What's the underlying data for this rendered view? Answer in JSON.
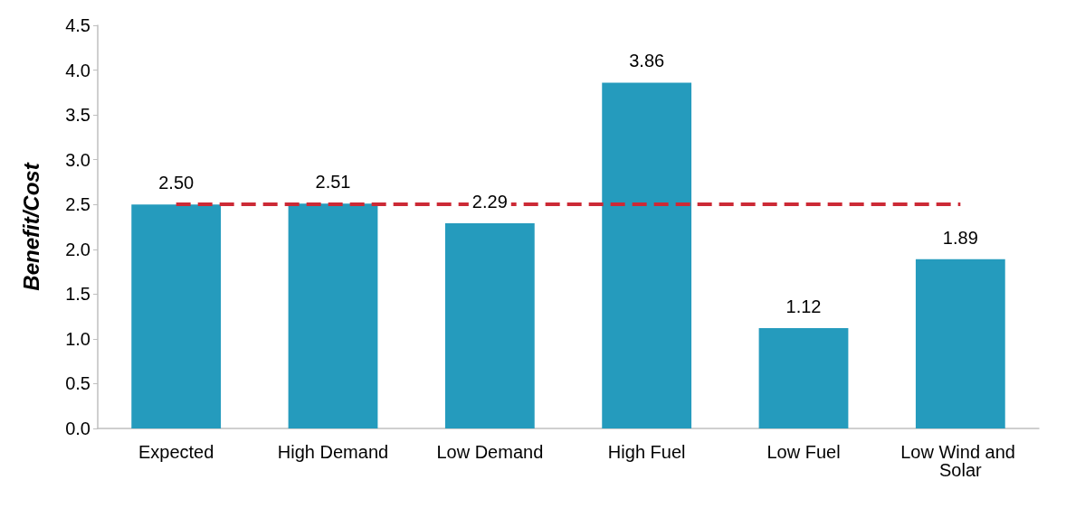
{
  "chart_data": {
    "type": "bar",
    "ylabel": "Benefit/Cost",
    "categories": [
      "Expected",
      "High Demand",
      "Low Demand",
      "High Fuel",
      "Low Fuel",
      "Low Wind and Solar"
    ],
    "values": [
      2.5,
      2.51,
      2.29,
      3.86,
      1.12,
      1.89
    ],
    "value_labels": [
      "2.50",
      "2.51",
      "2.29",
      "3.86",
      "1.12",
      "1.89"
    ],
    "color": "#259bbd",
    "ylim": [
      0,
      4.5
    ],
    "yticks": [
      {
        "value": 0,
        "label": "0.0"
      },
      {
        "value": 0.5,
        "label": "0.5"
      },
      {
        "value": 1,
        "label": "1.0"
      },
      {
        "value": 1.5,
        "label": "1.5"
      },
      {
        "value": 2,
        "label": "2.0"
      },
      {
        "value": 2.5,
        "label": "2.5"
      },
      {
        "value": 3,
        "label": "3.0"
      },
      {
        "value": 3.5,
        "label": "3.5"
      },
      {
        "value": 4,
        "label": "4.0"
      },
      {
        "value": 4.5,
        "label": "4.5"
      }
    ],
    "ref_lines": [
      {
        "axis": "y",
        "value": 2.5,
        "color": "#cc2a36",
        "line_style": "dashed"
      }
    ],
    "grid": false
  }
}
